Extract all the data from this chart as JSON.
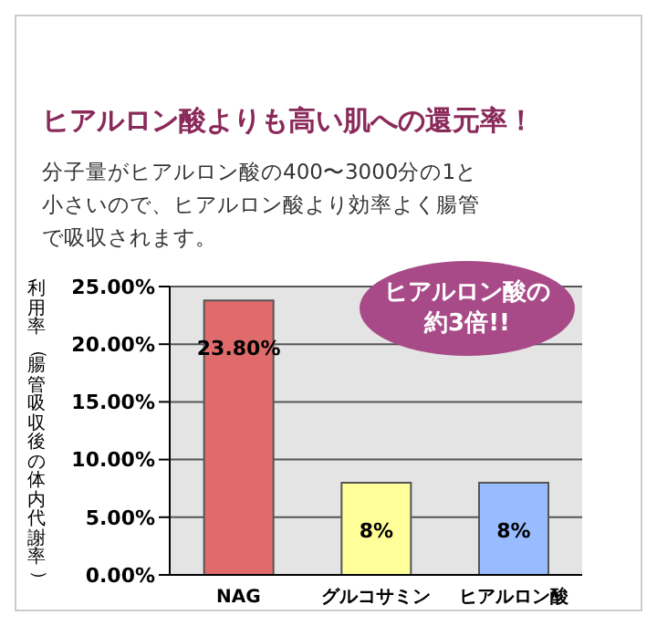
{
  "chart_data": {
    "type": "bar",
    "title": "ヒアルロン酸よりも高い肌への還元率！",
    "subtitle": "分子量がヒアルロン酸の400〜3000分の1と小さいので、ヒアルロン酸より効率よく腸管で吸収されます。",
    "ylabel": "利用率（腸管吸収後の体内代謝率）",
    "annotations": [
      "ヒアルロン酸の約3倍!!"
    ],
    "categories": [
      "NAG",
      "グルコサミン",
      "ヒアルロン酸"
    ],
    "values": [
      23.8,
      8,
      8
    ],
    "colors": [
      "#e06b6b",
      "#ffff99",
      "#99bbff"
    ],
    "value_labels": [
      "23.80%",
      "8%",
      "8%"
    ],
    "ylim": [
      0,
      25
    ],
    "yticks": [
      {
        "value": 0,
        "label": "0.00%"
      },
      {
        "value": 5,
        "label": "5.00%"
      },
      {
        "value": 10,
        "label": "10.00%"
      },
      {
        "value": 15,
        "label": "15.00%"
      },
      {
        "value": 20,
        "label": "20.00%"
      },
      {
        "value": 25,
        "label": "25.00%"
      }
    ],
    "grid": "y"
  }
}
